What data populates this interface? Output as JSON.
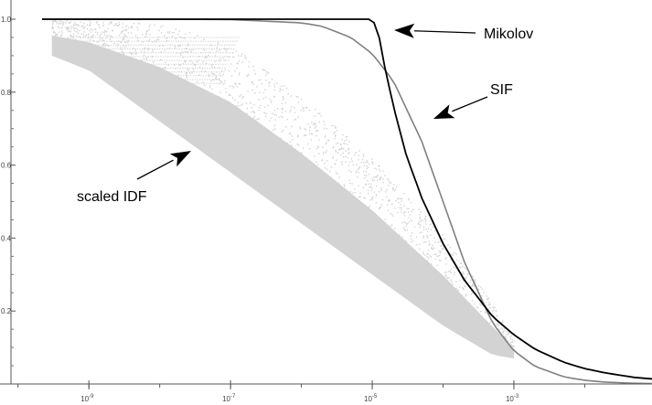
{
  "chart_data": {
    "type": "line",
    "x_scale": "log",
    "xlim": [
      "10^-10",
      "10^-1"
    ],
    "ylim": [
      0,
      1.05
    ],
    "x_ticks": [
      {
        "label": "10",
        "exp": "-9",
        "value": 1e-09
      },
      {
        "label": "10",
        "exp": "-7",
        "value": 1e-07
      },
      {
        "label": "10",
        "exp": "-5",
        "value": 1e-05
      },
      {
        "label": "10",
        "exp": "-3",
        "value": 0.001
      }
    ],
    "y_ticks": [
      {
        "label": "0.2",
        "value": 0.2
      },
      {
        "label": "0.4",
        "value": 0.4
      },
      {
        "label": "0.6",
        "value": 0.6
      },
      {
        "label": "0.8",
        "value": 0.8
      },
      {
        "label": "1.0",
        "value": 1.0
      }
    ],
    "grid": false,
    "series": [
      {
        "name": "Mikolov",
        "color": "#000000",
        "x": [
          1e-10,
          1e-09,
          1e-08,
          1e-07,
          1e-06,
          5e-06,
          1e-05,
          1.2e-05,
          1.5e-05,
          2e-05,
          3e-05,
          5e-05,
          0.0001,
          0.0002,
          0.0005,
          0.001,
          0.002,
          0.005,
          0.01,
          0.02,
          0.05,
          0.1
        ],
        "y": [
          1.0,
          1.0,
          1.0,
          1.0,
          1.0,
          1.0,
          1.0,
          0.97,
          0.87,
          0.76,
          0.63,
          0.51,
          0.385,
          0.285,
          0.185,
          0.135,
          0.095,
          0.06,
          0.042,
          0.03,
          0.018,
          0.013
        ]
      },
      {
        "name": "SIF",
        "color": "#808080",
        "x": [
          1e-10,
          1e-08,
          1e-07,
          1e-06,
          2e-06,
          5e-06,
          1e-05,
          2e-05,
          5e-05,
          0.0001,
          0.0002,
          0.0005,
          0.001,
          0.002,
          0.005,
          0.01,
          0.02,
          0.05,
          0.1
        ],
        "y": [
          1.0,
          1.0,
          0.999,
          0.99,
          0.98,
          0.95,
          0.905,
          0.83,
          0.665,
          0.5,
          0.335,
          0.167,
          0.091,
          0.048,
          0.02,
          0.01,
          0.005,
          0.002,
          0.001
        ]
      },
      {
        "name": "scaled IDF",
        "color": "#d3d3d3",
        "type": "scatter",
        "lower_envelope": {
          "x": [
            3e-10,
            1e-09,
            1e-08,
            1e-07,
            1e-06,
            1e-05,
            0.0001,
            0.0005,
            0.001
          ],
          "y": [
            0.9,
            0.86,
            0.72,
            0.58,
            0.44,
            0.3,
            0.16,
            0.08,
            0.07
          ]
        },
        "upper_envelope": {
          "x": [
            3e-10,
            1e-09,
            1e-08,
            1e-07,
            1e-06,
            1e-05,
            0.0001,
            0.0005,
            0.001
          ],
          "y": [
            1.0,
            1.0,
            0.99,
            0.93,
            0.79,
            0.62,
            0.41,
            0.22,
            0.12
          ]
        }
      }
    ],
    "annotations": [
      {
        "text": "Mikolov",
        "target": "Mikolov"
      },
      {
        "text": "SIF",
        "target": "SIF"
      },
      {
        "text": "scaled IDF",
        "target": "scaled IDF"
      }
    ]
  }
}
